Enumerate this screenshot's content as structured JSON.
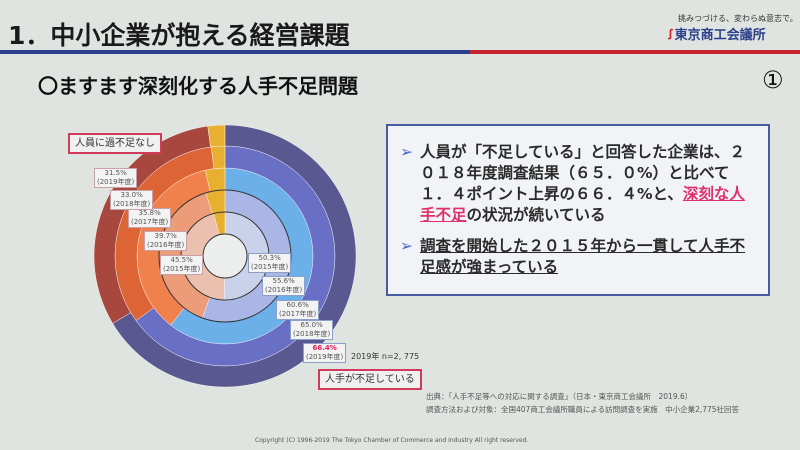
{
  "header": {
    "title": "1．中小企業が抱える経営課題",
    "slogan": "挑みつづける、変わらぬ意志で。",
    "logo": "東京商工会議所"
  },
  "subtitle": "〇ますます深刻化する人手不足問題",
  "page_marker": "①",
  "box": {
    "bullet1_a": "人員が「不足している」と回答した企業は、２０１８年度調査結果（６５．０%）と比べて１．４ポイント上昇の６６．４%と、",
    "bullet1_hl": "深刻な人手不足",
    "bullet1_b": "の状況が続いている",
    "bullet2": "調査を開始した２０１５年から一貫して人手不足感が強まっている"
  },
  "chart_data": {
    "type": "donut",
    "categories": [
      "2015年度",
      "2016年度",
      "2017年度",
      "2018年度",
      "2019年度"
    ],
    "series": [
      {
        "name": "人手が不足している",
        "values": [
          50.3,
          55.6,
          60.6,
          65.0,
          66.4
        ]
      },
      {
        "name": "人員に過不足なし",
        "values": [
          45.5,
          39.7,
          35.8,
          33.0,
          31.5
        ]
      }
    ],
    "labels_short": {
      "short": [
        "50.3%",
        "55.6%",
        "60.6%",
        "65.0%",
        "66.4%"
      ],
      "ok": [
        "45.5%",
        "39.7%",
        "35.8%",
        "33.0%",
        "31.5%"
      ],
      "years": [
        "(2015年度)",
        "(2016年度)",
        "(2017年度)",
        "(2018年度)",
        "(2019年度)"
      ]
    },
    "legend": {
      "short": "人手が不足している",
      "ok": "人員に過不足なし"
    },
    "note": "2019年 n=2, 775",
    "colors": {
      "short": [
        "#c9d2ea",
        "#aab6e6",
        "#6cb0ea",
        "#6a6fc6",
        "#5a5891"
      ],
      "ok": [
        "#ecc0ae",
        "#ec9c78",
        "#f1814c",
        "#dd6535",
        "#a8473d"
      ],
      "other": "#e7b030"
    }
  },
  "source": {
    "line1": "出典：「人手不足等への対応に関する調査」（日本・東京商工会議所　2019.6）",
    "line2": "調査方法および対象：全国407商工会議所職員による訪問調査を実施　中小企業2,775社回答"
  },
  "copyright": "Copyright (C) 1996-2019 The Tokyo Chamber of Commerce and Industry All right reserved."
}
